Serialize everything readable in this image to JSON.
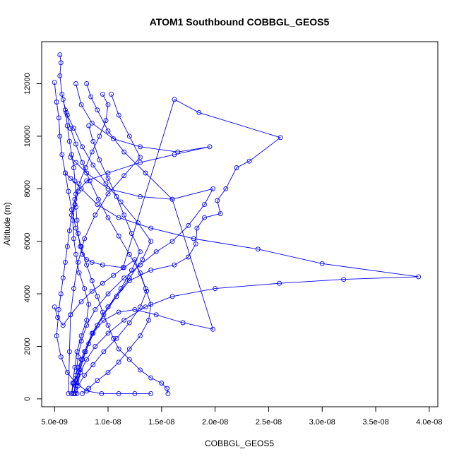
{
  "chart_data": {
    "type": "scatter",
    "title": "ATOM1 Southbound COBBGL_GEOS5",
    "xlabel": "COBBGL_GEOS5",
    "ylabel": "Altitude (m)",
    "xlim": [
      3.8e-09,
      4.08e-08
    ],
    "ylim": [
      -300,
      13600
    ],
    "x_ticks": [
      5e-09,
      1e-08,
      1.5e-08,
      2e-08,
      2.5e-08,
      3e-08,
      3.5e-08,
      4e-08
    ],
    "x_tick_labels": [
      "5.0e-09",
      "1.0e-08",
      "1.5e-08",
      "2.0e-08",
      "2.5e-08",
      "3.0e-08",
      "3.5e-08",
      "4.0e-08"
    ],
    "y_ticks": [
      0,
      2000,
      4000,
      6000,
      8000,
      10000,
      12000
    ],
    "y_tick_labels": [
      "0",
      "2000",
      "4000",
      "6000",
      "8000",
      "10000",
      "12000"
    ],
    "grid": false,
    "color": "#0000ff",
    "series": [
      {
        "x": [
          5.5e-09,
          5.6e-09,
          5.5e-09,
          5.7e-09,
          6e-09,
          6.2e-09,
          6.4e-09,
          6.6e-09,
          6.8e-09,
          6.9e-09,
          7e-09,
          7e-09,
          7.1e-09,
          7.2e-09,
          7.4e-09,
          7.6e-09,
          8e-09,
          8.5e-09,
          9.5e-09,
          1.14e-08,
          1.62e-08,
          1.85e-08,
          2.61e-08,
          2.32e-08,
          2.2e-08,
          2.1e-08,
          2.02e-08,
          2.05e-08,
          1.9e-08,
          1.83e-08,
          1.82e-08,
          1.75e-08,
          1.62e-08,
          1.4e-08,
          1.2e-08,
          1e-08,
          8.5e-09,
          7.5e-09,
          7e-09,
          6.8e-09
        ],
        "y": [
          13100,
          12800,
          12300,
          11600,
          11000,
          10400,
          9800,
          9300,
          8800,
          8300,
          7800,
          7300,
          6800,
          6300,
          5800,
          5500,
          5300,
          5200,
          5100,
          5000,
          11400,
          10900,
          9950,
          9050,
          8800,
          8000,
          7550,
          7050,
          6900,
          6500,
          5900,
          5400,
          5100,
          4900,
          4500,
          3500,
          2500,
          1500,
          700,
          200
        ]
      },
      {
        "x": [
          7e-09,
          7.5e-09,
          8.5e-09,
          1.05e-08,
          1.3e-08,
          1.65e-08,
          1.95e-08,
          1.62e-08,
          1.3e-08,
          1e-08,
          8e-09,
          7.2e-09,
          6.9e-09,
          6.7e-09,
          6.8e-09,
          7e-09,
          7.3e-09,
          7.8e-09,
          8.2e-09,
          8e-09,
          7.5e-09,
          7.1e-09,
          6.9e-09,
          6.7e-09,
          6.6e-09
        ],
        "y": [
          12000,
          11200,
          10500,
          9900,
          9600,
          9400,
          9600,
          9300,
          9000,
          8600,
          8300,
          7900,
          7400,
          6800,
          6100,
          5500,
          4800,
          4200,
          3600,
          3000,
          2400,
          1800,
          1200,
          600,
          200
        ]
      },
      {
        "x": [
          6.5e-09,
          7e-09,
          8e-09,
          1e-08,
          1.3e-08,
          1.6e-08,
          1.98e-08,
          1.9e-08,
          1.75e-08,
          1.6e-08,
          1.45e-08,
          1.3e-08,
          1.15e-08,
          1e-08,
          8.8e-09,
          8e-09,
          7.5e-09,
          7.2e-09,
          7e-09,
          6.9e-09
        ],
        "y": [
          9200,
          9000,
          8600,
          8000,
          7700,
          7600,
          8000,
          7400,
          6600,
          6000,
          5600,
          5100,
          4600,
          4000,
          3400,
          2800,
          2200,
          1600,
          900,
          200
        ]
      },
      {
        "x": [
          6e-09,
          6.5e-09,
          7.5e-09,
          9e-09,
          1.1e-08,
          1.4e-08,
          1.8e-08,
          2.4e-08,
          3e-08,
          3.9e-08,
          3.2e-08,
          2.6e-08,
          2e-08,
          1.6e-08,
          1.35e-08,
          1.15e-08,
          1e-08,
          8.8e-09,
          8e-09,
          7.4e-09,
          7e-09,
          6.8e-09
        ],
        "y": [
          8600,
          8400,
          8000,
          7400,
          6900,
          6500,
          6100,
          5700,
          5150,
          4650,
          4550,
          4400,
          4200,
          3900,
          3500,
          3000,
          2500,
          2000,
          1500,
          1000,
          500,
          200
        ]
      },
      {
        "x": [
          8e-09,
          8.4e-09,
          9e-09,
          1e-08,
          1.15e-08,
          1.35e-08,
          1.6e-08,
          1.98e-08,
          1.7e-08,
          1.45e-08,
          1.25e-08,
          1.1e-08,
          9.6e-09,
          8.6e-09,
          7.9e-09,
          7.4e-09,
          7.1e-09
        ],
        "y": [
          12000,
          11500,
          11000,
          10200,
          9400,
          8600,
          7600,
          2650,
          2900,
          3200,
          3400,
          3300,
          3000,
          2500,
          1800,
          1100,
          200
        ]
      },
      {
        "x": [
          5e-09,
          5.2e-09,
          5.4e-09,
          5.5e-09,
          5.7e-09,
          6e-09,
          6.3e-09,
          6.6e-09,
          7e-09,
          7.5e-09,
          8e-09,
          8.5e-09,
          9e-09,
          9.5e-09,
          1e-08,
          1.05e-08,
          1.1e-08,
          1.2e-08,
          1.3e-08,
          1.4e-08,
          1.5e-08,
          1.55e-08,
          1.56e-08
        ],
        "y": [
          12050,
          11300,
          10700,
          10000,
          9300,
          8600,
          7900,
          7200,
          6500,
          5800,
          5100,
          4500,
          3900,
          3300,
          2800,
          2300,
          1900,
          1500,
          1100,
          800,
          600,
          400,
          200
        ]
      },
      {
        "x": [
          5e-09,
          5.3e-09,
          5.8e-09,
          6.5e-09,
          7.5e-09,
          8.5e-09,
          9.5e-09,
          1.05e-08,
          1.15e-08,
          1.25e-08,
          1.35e-08,
          1.4e-08,
          1.38e-08,
          1.3e-08,
          1.2e-08,
          1.1e-08,
          1e-08,
          9e-09,
          8.2e-09,
          7.6e-09
        ],
        "y": [
          3500,
          3100,
          2800,
          3200,
          3700,
          4100,
          4400,
          4700,
          5000,
          5300,
          4200,
          3600,
          3000,
          2400,
          1900,
          1400,
          1000,
          700,
          400,
          200
        ]
      },
      {
        "x": [
          9.5e-09,
          1e-08,
          9.8e-09,
          9.2e-09,
          8.5e-09,
          7.9e-09,
          7.3e-09,
          6.9e-09,
          6.6e-09,
          6.4e-09,
          6.2e-09,
          6e-09,
          5.8e-09,
          5.6e-09,
          5.4e-09,
          5.2e-09,
          5.6e-09,
          6.2e-09,
          7e-09,
          8e-09,
          9.4e-09,
          1.1e-08,
          1.25e-08,
          1.4e-08
        ],
        "y": [
          11600,
          11200,
          10600,
          10000,
          9400,
          8800,
          8200,
          7600,
          7000,
          6400,
          5800,
          5200,
          4600,
          4000,
          3400,
          2400,
          1600,
          1000,
          600,
          300,
          200,
          200,
          200,
          200
        ]
      },
      {
        "x": [
          1.03e-08,
          1.1e-08,
          1.2e-08,
          1.3e-08,
          1.15e-08,
          1e-08,
          8.8e-09,
          7.8e-09,
          7.2e-09,
          6.8e-09,
          6.5e-09,
          6.4e-09,
          6.3e-09
        ],
        "y": [
          11600,
          10800,
          10000,
          9200,
          8500,
          7800,
          7000,
          6100,
          5200,
          4200,
          3200,
          1800,
          200
        ]
      },
      {
        "x": [
          6.2e-09,
          6.8e-09,
          7.6e-09,
          8.6e-09,
          9.8e-09,
          1.12e-08,
          1.28e-08,
          1.4e-08,
          1.32e-08,
          1.2e-08,
          1.08e-08,
          9.6e-09,
          8.6e-09,
          7.8e-09,
          7.2e-09,
          6.8e-09,
          6.6e-09
        ],
        "y": [
          10800,
          10300,
          9600,
          8900,
          8200,
          7500,
          6700,
          6000,
          5300,
          4600,
          3900,
          3200,
          2500,
          1800,
          1200,
          600,
          200
        ]
      },
      {
        "x": [
          8.2e-09,
          8.6e-09,
          9.2e-09,
          1e-08,
          1.08e-08,
          1.15e-08,
          1.22e-08,
          1.3e-08,
          1.22e-08,
          1.12e-08,
          1e-08,
          9e-09,
          8.2e-09,
          7.6e-09,
          7.2e-09,
          7e-09,
          6.8e-09
        ],
        "y": [
          10400,
          9800,
          9100,
          8400,
          7700,
          7000,
          6300,
          5600,
          4900,
          4200,
          3500,
          2800,
          2100,
          1500,
          900,
          500,
          200
        ]
      },
      {
        "x": [
          5.8e-09,
          6.1e-09,
          6.5e-09,
          7e-09,
          7.6e-09,
          8.3e-09,
          9.1e-09,
          1e-08,
          1.1e-08,
          1.2e-08,
          1.3e-08,
          1.36e-08,
          1.3e-08,
          1.2e-08,
          1.08e-08,
          9.6e-09,
          8.6e-09,
          7.8e-09,
          7.2e-09,
          6.9e-09
        ],
        "y": [
          11400,
          10900,
          10300,
          9700,
          9000,
          8300,
          7600,
          6900,
          6200,
          5500,
          4800,
          4100,
          3500,
          2900,
          2300,
          1800,
          1300,
          900,
          500,
          200
        ]
      }
    ]
  }
}
